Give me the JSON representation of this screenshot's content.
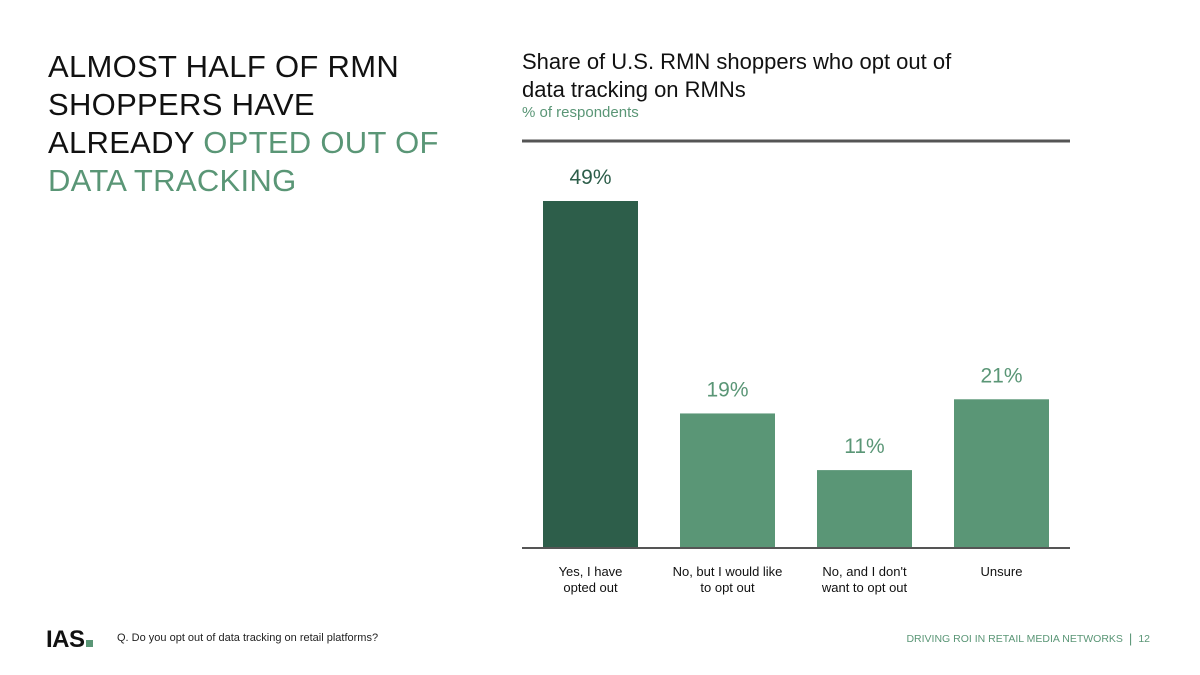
{
  "headline": {
    "part1": "ALMOST HALF OF RMN SHOPPERS HAVE ALREADY ",
    "part2": "OPTED OUT OF DATA TRACKING"
  },
  "colors": {
    "accent": "#5a9676",
    "dark_bar": "#2d5e4a",
    "light_bar": "#5a9676",
    "axis": "#555555"
  },
  "chart_data": {
    "type": "bar",
    "title": "Share of U.S. RMN shoppers who opt out of data tracking on RMNs",
    "subtitle": "% of respondents",
    "categories": [
      [
        "Yes, I have",
        "opted out"
      ],
      [
        "No, but I would like",
        "to opt out"
      ],
      [
        "No, and I don't",
        "want to opt out"
      ],
      [
        "Unsure"
      ]
    ],
    "values": [
      49,
      19,
      11,
      21
    ],
    "value_labels": [
      "49%",
      "19%",
      "11%",
      "21%"
    ],
    "ylim": [
      0,
      49
    ],
    "grid": false,
    "legend": "none"
  },
  "footer": {
    "logo": "IAS",
    "question": "Q. Do you opt out of data tracking on retail platforms?",
    "section": "DRIVING ROI IN RETAIL MEDIA NETWORKS",
    "separator": "|",
    "page": "12"
  }
}
